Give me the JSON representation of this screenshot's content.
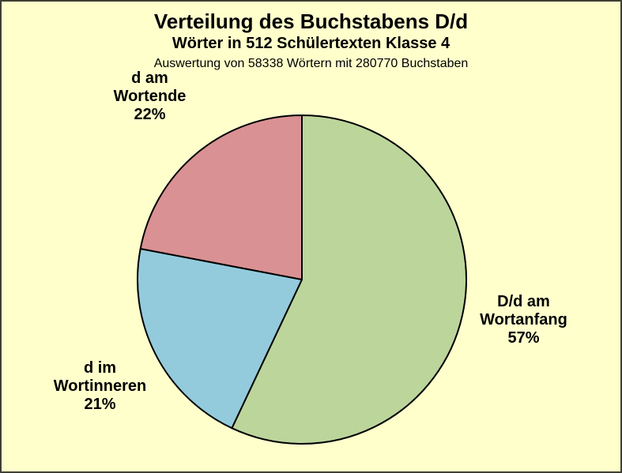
{
  "title": "Verteilung des Buchstabens D/d",
  "subtitle": "Wörter in 512 Schülertexten Klasse 4",
  "note": "Auswertung von 58338 Wörtern mit 280770 Buchstaben",
  "colors": {
    "background": "#FFFFCC",
    "frame_border": "#3F3F33",
    "pie_outline": "#000000",
    "slice_wortanfang": "#BCD59B",
    "slice_wortinneren": "#93CBDD",
    "slice_wortende": "#DA9193"
  },
  "chart_data": {
    "type": "pie",
    "title": "Verteilung des Buchstabens D/d",
    "subtitle": "Wörter in 512 Schülertexten Klasse 4",
    "annotation": "Auswertung von 58338 Wörtern mit 280770 Buchstaben",
    "start_angle_deg": 0,
    "direction": "clockwise",
    "legend": false,
    "slices": [
      {
        "id": "wortanfang",
        "label": "D/d am Wortanfang",
        "pct": 57,
        "color": "#BCD59B",
        "label_lines": [
          "D/d am",
          "Wortanfang",
          "57%"
        ]
      },
      {
        "id": "wortinneren",
        "label": "d im Wortinneren",
        "pct": 21,
        "color": "#93CBDD",
        "label_lines": [
          "d im",
          "Wortinneren",
          "21%"
        ]
      },
      {
        "id": "wortende",
        "label": "d am Wortende",
        "pct": 22,
        "color": "#DA9193",
        "label_lines": [
          "d am",
          "Wortende",
          "22%"
        ]
      }
    ]
  }
}
